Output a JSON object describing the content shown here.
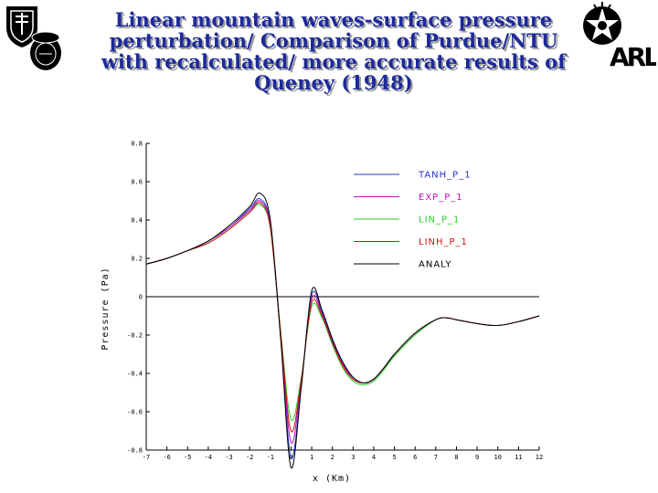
{
  "page": {
    "title_lines": [
      "Linear mountain waves-surface pressure",
      "perturbation/ Comparison of Purdue/NTU",
      "with recalculated/ more accurate results of",
      "Queney (1948)"
    ],
    "title_color": "#1d2a9a",
    "logos": {
      "left_shield": "shield-logo",
      "left_seal": "seal-logo",
      "right_star": "star-emblem-logo",
      "right_arl": "ARL"
    }
  },
  "chart_data": {
    "type": "line",
    "title": "",
    "xlabel": "x (Km)",
    "ylabel": "Pressure (Pa)",
    "xlim": [
      -7,
      12
    ],
    "ylim": [
      -0.8,
      0.8
    ],
    "x_ticks": [
      -7,
      -6,
      -5,
      -4,
      -3,
      -2,
      -1,
      0,
      1,
      2,
      3,
      4,
      5,
      6,
      7,
      8,
      9,
      10,
      11,
      12
    ],
    "x_tick_labels": [
      "-7",
      "-6",
      "-5",
      "-4",
      "-3",
      "-2",
      "-1",
      "0",
      "1",
      "2",
      "3",
      "4",
      "5",
      "6",
      "7",
      "8",
      "9",
      "10",
      "11",
      "12"
    ],
    "y_ticks": [
      -0.8,
      -0.6,
      -0.4,
      -0.2,
      0,
      0.2,
      0.4,
      0.6,
      0.8
    ],
    "y_tick_labels": [
      "-0.8",
      "-0.6",
      "-0.4",
      "-0.2",
      "0",
      "0.2",
      "0.4",
      "0.6",
      "0.8"
    ],
    "legend_position": "top-right",
    "x": [
      -7,
      -6,
      -5,
      -4,
      -3,
      -2,
      -1.5,
      -1,
      -0.5,
      0,
      0.5,
      1,
      1.5,
      2,
      2.5,
      3,
      3.5,
      4,
      4.5,
      5,
      6,
      7,
      7.5,
      8,
      9,
      10,
      11,
      12
    ],
    "series": [
      {
        "name": "TANH_P_1",
        "color": "#2233cc",
        "values": [
          0.17,
          0.2,
          0.24,
          0.29,
          0.36,
          0.46,
          0.51,
          0.38,
          -0.2,
          -0.84,
          -0.46,
          0.01,
          -0.08,
          -0.23,
          -0.35,
          -0.42,
          -0.45,
          -0.43,
          -0.37,
          -0.3,
          -0.19,
          -0.12,
          -0.11,
          -0.12,
          -0.14,
          -0.15,
          -0.13,
          -0.1
        ]
      },
      {
        "name": "EXP_P_1",
        "color": "#bb11bb",
        "values": [
          0.17,
          0.2,
          0.24,
          0.29,
          0.36,
          0.45,
          0.5,
          0.37,
          -0.2,
          -0.76,
          -0.44,
          -0.01,
          -0.09,
          -0.24,
          -0.35,
          -0.43,
          -0.45,
          -0.43,
          -0.37,
          -0.3,
          -0.19,
          -0.12,
          -0.11,
          -0.12,
          -0.14,
          -0.15,
          -0.13,
          -0.1
        ]
      },
      {
        "name": "LIN_P_1",
        "color": "#22cc22",
        "values": [
          0.17,
          0.2,
          0.24,
          0.28,
          0.35,
          0.44,
          0.48,
          0.36,
          -0.18,
          -0.64,
          -0.42,
          -0.05,
          -0.11,
          -0.25,
          -0.37,
          -0.44,
          -0.46,
          -0.44,
          -0.38,
          -0.31,
          -0.2,
          -0.12,
          -0.11,
          -0.12,
          -0.14,
          -0.15,
          -0.13,
          -0.1
        ]
      },
      {
        "name": "LINH_P_1",
        "color": "#cc1111",
        "values": [
          0.17,
          0.2,
          0.24,
          0.28,
          0.35,
          0.44,
          0.49,
          0.36,
          -0.19,
          -0.7,
          -0.43,
          -0.03,
          -0.1,
          -0.24,
          -0.36,
          -0.43,
          -0.45,
          -0.43,
          -0.37,
          -0.3,
          -0.19,
          -0.12,
          -0.11,
          -0.12,
          -0.14,
          -0.15,
          -0.13,
          -0.1
        ]
      },
      {
        "name": "ANALY",
        "color": "#000000",
        "values": [
          0.17,
          0.2,
          0.24,
          0.29,
          0.37,
          0.47,
          0.54,
          0.4,
          -0.22,
          -0.89,
          -0.47,
          0.03,
          -0.07,
          -0.22,
          -0.34,
          -0.42,
          -0.45,
          -0.43,
          -0.37,
          -0.3,
          -0.19,
          -0.12,
          -0.11,
          -0.12,
          -0.14,
          -0.15,
          -0.13,
          -0.1
        ]
      }
    ]
  }
}
